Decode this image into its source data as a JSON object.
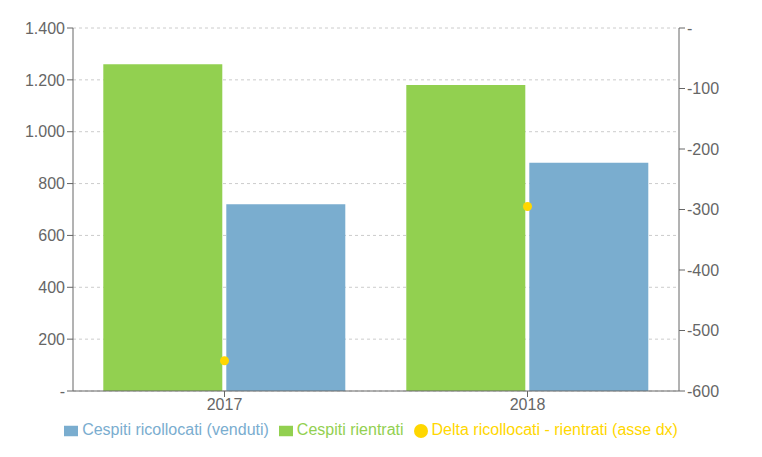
{
  "chart_data": {
    "type": "bar",
    "categories": [
      "2017",
      "2018"
    ],
    "series": [
      {
        "name": "Cespiti rientrati",
        "color": "#92d050",
        "values": [
          1260,
          1180
        ]
      },
      {
        "name": "Cespiti ricollocati (venduti)",
        "color": "#7aadcf",
        "values": [
          720,
          880
        ]
      },
      {
        "name": "Delta ricollocati - rientrati (asse dx)",
        "type": "scatter",
        "marker": "circle",
        "axis": "y2",
        "color": "#ffd700",
        "values": [
          -550,
          -295
        ]
      }
    ],
    "ylim": [
      0,
      1400
    ],
    "yticks": [
      {
        "value": 0,
        "label": "-"
      },
      200,
      400,
      600,
      800,
      {
        "value": 1000,
        "label": "1.000"
      },
      {
        "value": 1200,
        "label": "1.200"
      },
      {
        "value": 1400,
        "label": "1.400"
      }
    ],
    "y2lim": [
      -600,
      0
    ],
    "y2ticks": [
      -600,
      -500,
      -400,
      -300,
      -200,
      -100,
      {
        "value": 0,
        "label": "-"
      }
    ],
    "grid": true,
    "legend": "bottom"
  }
}
